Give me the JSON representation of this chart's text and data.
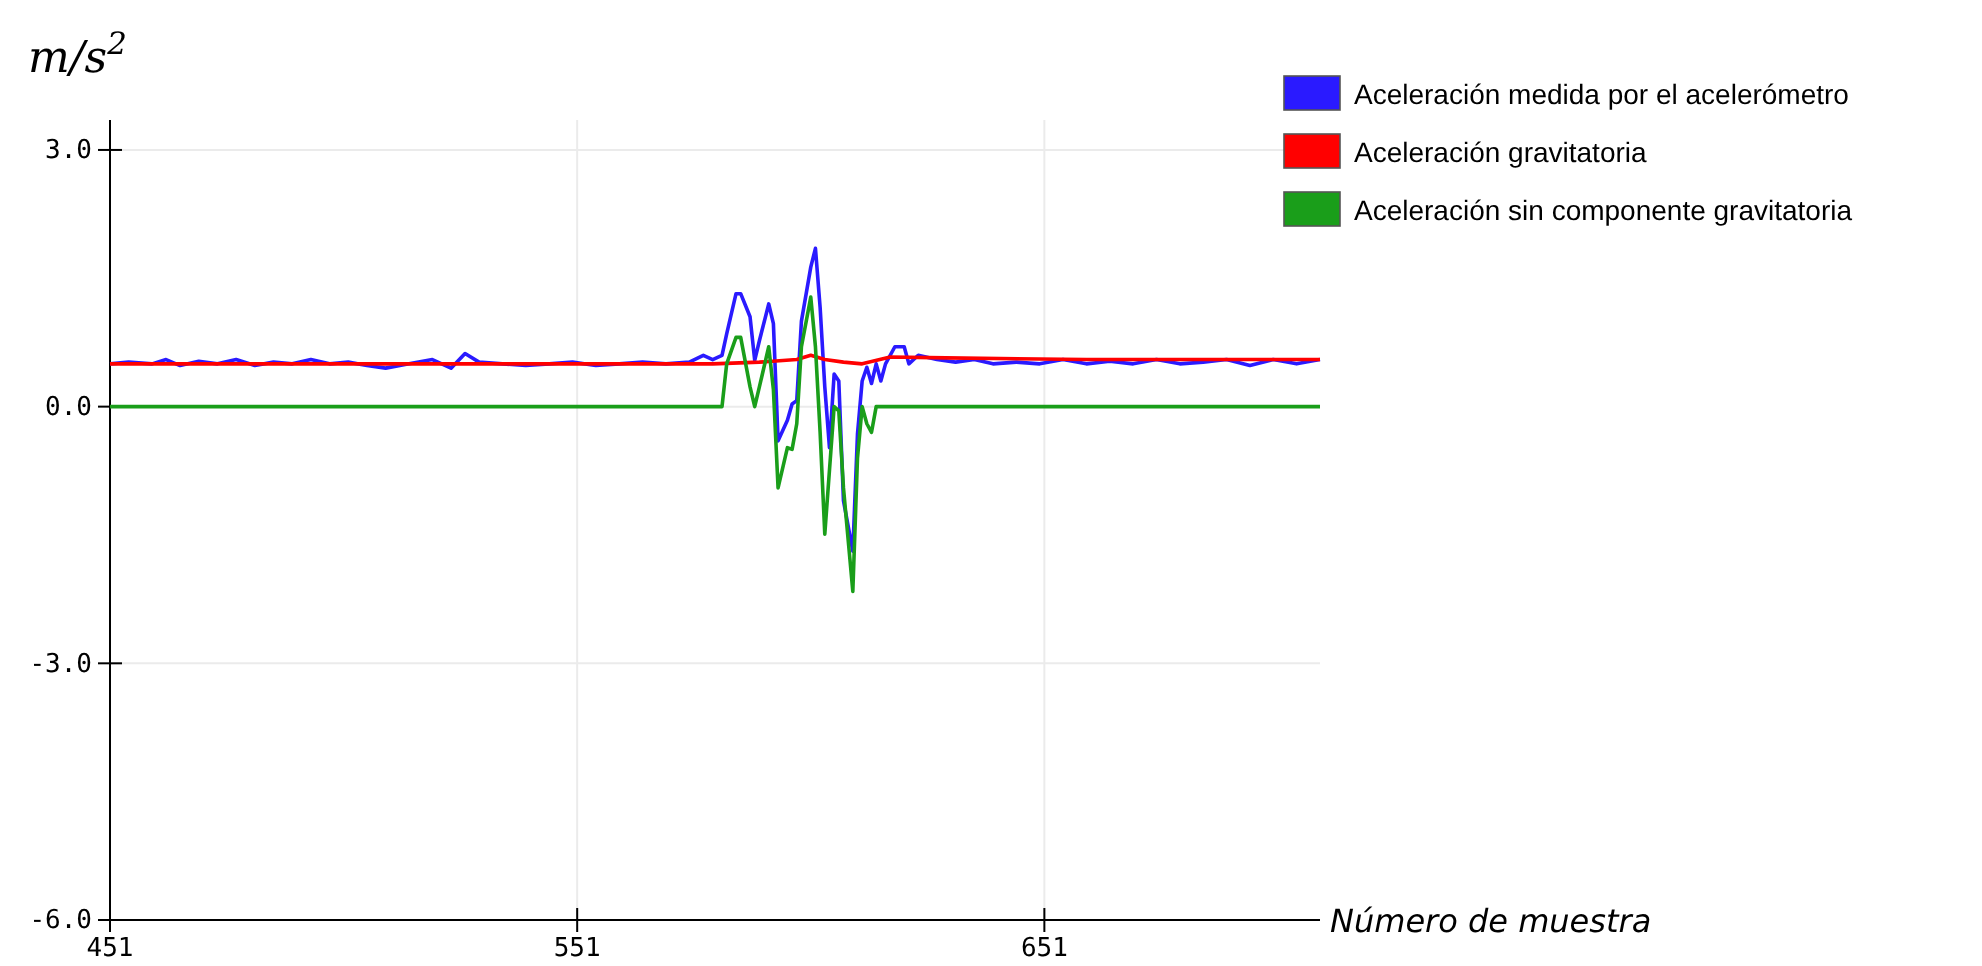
{
  "chart_data": {
    "type": "line",
    "ylabel": "m/s$^{2}$",
    "xlabel": "Número de muestra",
    "xlim": [
      451,
      710
    ],
    "xticks": [
      451,
      551,
      651
    ],
    "ylim": [
      -6,
      3.35
    ],
    "yticks": [
      {
        "value": 3,
        "label": "3.0"
      },
      {
        "value": 0,
        "label": "0.0"
      },
      {
        "value": -3,
        "label": "-3.0"
      },
      {
        "value": -6,
        "label": "-6.0"
      }
    ],
    "grid": true,
    "legend": "top right",
    "marker": "none",
    "line_style": "solid",
    "series": [
      {
        "name": "Aceleración medida por el acelerómetro",
        "color": "#2a1aff",
        "x": [
          451,
          455,
          460,
          463,
          466,
          470,
          474,
          478,
          482,
          486,
          490,
          494,
          498,
          502,
          506,
          510,
          515,
          520,
          524,
          527,
          530,
          535,
          540,
          545,
          550,
          555,
          560,
          565,
          570,
          575,
          578,
          580,
          582,
          583,
          585,
          586,
          588,
          589,
          590,
          592,
          593,
          594,
          596,
          597,
          598,
          599,
          601,
          602,
          603,
          604,
          605,
          606,
          607,
          608,
          610,
          611,
          612,
          613,
          614,
          615,
          616,
          617,
          619,
          621,
          622,
          624,
          628,
          632,
          636,
          640,
          645,
          650,
          655,
          660,
          665,
          670,
          675,
          680,
          685,
          690,
          695,
          700,
          705,
          710
        ],
        "values": [
          0.5,
          0.52,
          0.5,
          0.55,
          0.48,
          0.53,
          0.5,
          0.55,
          0.48,
          0.52,
          0.5,
          0.55,
          0.5,
          0.52,
          0.48,
          0.45,
          0.5,
          0.55,
          0.45,
          0.62,
          0.52,
          0.5,
          0.48,
          0.5,
          0.52,
          0.48,
          0.5,
          0.52,
          0.5,
          0.52,
          0.6,
          0.55,
          0.6,
          0.85,
          1.32,
          1.32,
          1.05,
          0.54,
          0.77,
          1.2,
          0.97,
          -0.4,
          -0.16,
          0.03,
          0.07,
          1.0,
          1.63,
          1.85,
          1.16,
          0.23,
          -0.48,
          0.38,
          0.3,
          -1.1,
          -1.69,
          -0.32,
          0.3,
          0.46,
          0.27,
          0.5,
          0.3,
          0.5,
          0.7,
          0.7,
          0.5,
          0.6,
          0.55,
          0.52,
          0.55,
          0.5,
          0.52,
          0.5,
          0.55,
          0.5,
          0.53,
          0.5,
          0.55,
          0.5,
          0.52,
          0.55,
          0.48,
          0.55,
          0.5,
          0.55
        ]
      },
      {
        "name": "Aceleración gravitatoria",
        "color": "#ff0000",
        "x": [
          451,
          580,
          590,
          598,
          601,
          604,
          608,
          612,
          618,
          630,
          660,
          710
        ],
        "values": [
          0.5,
          0.5,
          0.52,
          0.55,
          0.6,
          0.55,
          0.52,
          0.5,
          0.58,
          0.57,
          0.55,
          0.55
        ]
      },
      {
        "name": "Aceleración sin componente gravitatoria",
        "color": "#1a9e1a",
        "x": [
          451,
          582,
          583,
          585,
          586,
          588,
          589,
          590,
          592,
          593,
          594,
          596,
          597,
          598,
          599,
          601,
          602,
          603,
          604,
          606,
          607,
          608,
          610,
          611,
          612,
          613,
          614,
          615,
          710
        ],
        "values": [
          0,
          0,
          0.5,
          0.81,
          0.81,
          0.23,
          0,
          0.23,
          0.7,
          0.2,
          -0.95,
          -0.48,
          -0.5,
          -0.2,
          0.7,
          1.28,
          0.7,
          -0.3,
          -1.49,
          0,
          -0.05,
          -0.95,
          -2.16,
          -0.6,
          0,
          -0.2,
          -0.3,
          0,
          0
        ]
      }
    ]
  }
}
